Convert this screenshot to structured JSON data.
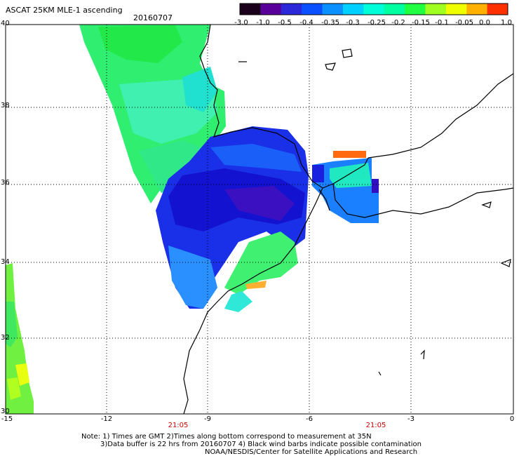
{
  "title": "ASCAT 25KM MLE-1 ascending",
  "date": "20160707",
  "colorbar": {
    "ticks": [
      "-3.0",
      "-1.0",
      "-0.5",
      "-0.4",
      "-0.35",
      "-0.3",
      "-0.25",
      "-0.2",
      "-0.15",
      "-0.1",
      "-0.05",
      "0.0",
      "1.0"
    ],
    "colors": [
      "#1a001a",
      "#5a009a",
      "#2a28d8",
      "#0a50ff",
      "#0a90ff",
      "#00d0ff",
      "#00ffd8",
      "#00ffa0",
      "#20ff40",
      "#a0ff20",
      "#f0ff00",
      "#ffb000",
      "#ff3000"
    ]
  },
  "lat_labels": [
    "40",
    "38",
    "36",
    "34",
    "32",
    "30"
  ],
  "lon_labels": [
    "-15",
    "-12",
    "-9",
    "-6",
    "-3",
    "0"
  ],
  "times": [
    "21:05",
    "21:05"
  ],
  "notes": [
    "Note: 1) Times are GMT 2)Times along bottom correspond to measurement at 35N",
    "3)Data buffer is 22 hrs from 20160707 4) Black wind barbs indicate possible contamination",
    "NOAA/NESDIS/Center for Satellite Applications and Research"
  ]
}
